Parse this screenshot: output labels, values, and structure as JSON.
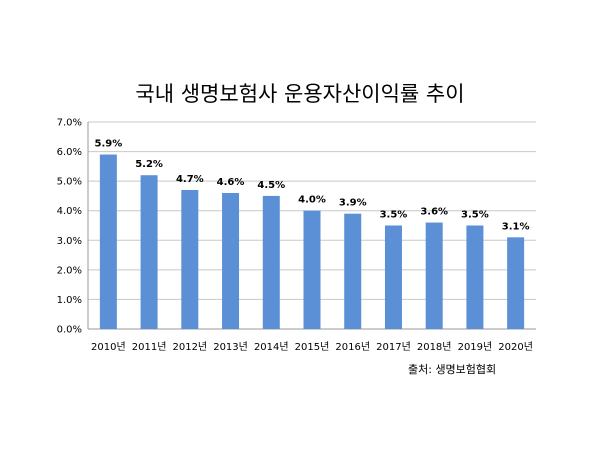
{
  "chart_data": {
    "type": "bar",
    "title": "국내 생명보험사 운용자산이익률 추이",
    "categories": [
      "2010년",
      "2011년",
      "2012년",
      "2013년",
      "2014년",
      "2015년",
      "2016년",
      "2017년",
      "2018년",
      "2019년",
      "2020년"
    ],
    "values": [
      5.9,
      5.2,
      4.7,
      4.6,
      4.5,
      4.0,
      3.9,
      3.5,
      3.6,
      3.5,
      3.1
    ],
    "data_labels": [
      "5.9%",
      "5.2%",
      "4.7%",
      "4.6%",
      "4.5%",
      "4.0%",
      "3.9%",
      "3.5%",
      "3.6%",
      "3.5%",
      "3.1%"
    ],
    "y_ticks": [
      "0.0%",
      "1.0%",
      "2.0%",
      "3.0%",
      "4.0%",
      "5.0%",
      "6.0%",
      "7.0%"
    ],
    "ylim": [
      0,
      7
    ],
    "grid": true,
    "bar_color": "#5b8fd6",
    "source": "출처: 생명보험협회"
  }
}
